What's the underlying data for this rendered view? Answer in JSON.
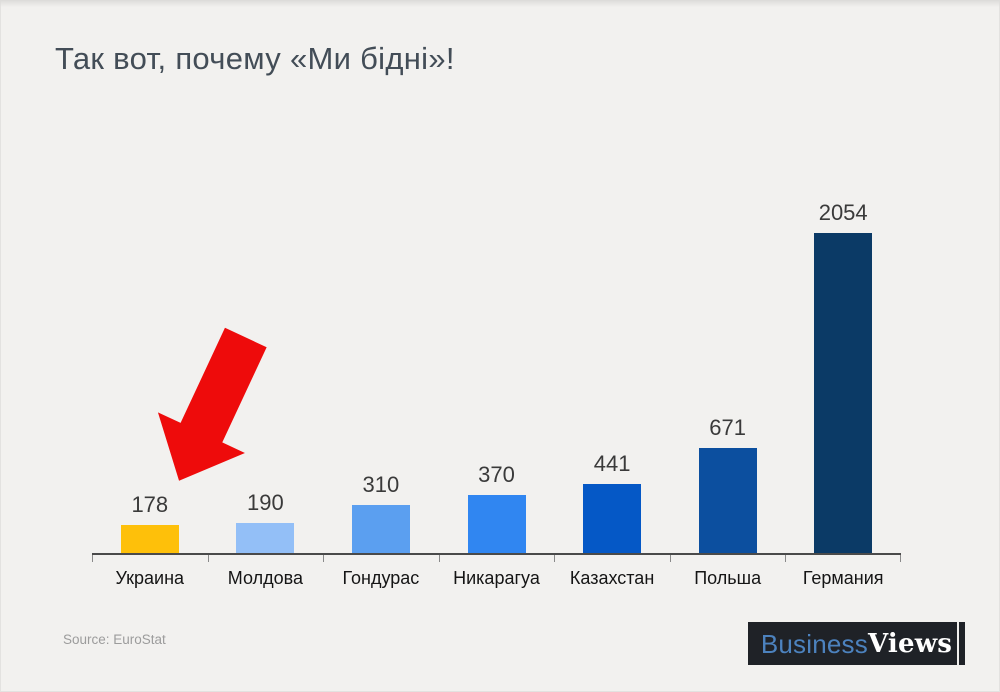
{
  "page": {
    "background": "#F2F1EF"
  },
  "title": "Так вот, почему «Ми бідні»!",
  "source": {
    "label": "Source: EuroStat"
  },
  "logo": {
    "part1": "Business",
    "part2": "Views",
    "bg": "#1F2227",
    "part1_color": "#4C82BE",
    "part2_color": "#FFFFFF",
    "accent_line_color": "#F0EFED"
  },
  "annotation": {
    "arrow_color": "#EE0B0B"
  },
  "chart_data": {
    "type": "bar",
    "title": "Так вот, почему «Ми бідні»!",
    "categories": [
      "Украина",
      "Молдова",
      "Гондурас",
      "Никарагуа",
      "Казахстан",
      "Польша",
      "Германия"
    ],
    "values": [
      178,
      190,
      310,
      370,
      441,
      671,
      2054
    ],
    "bar_colors": [
      "#FEC00A",
      "#93BFF7",
      "#5B9FF0",
      "#3086F1",
      "#0558C6",
      "#0C4F9F",
      "#0B3A66"
    ],
    "xlabel": "",
    "ylabel": "",
    "ylim": [
      0,
      2054
    ],
    "grid": false,
    "legend": false,
    "value_labels": true,
    "axis_color": "#4A4A4A",
    "tick_color": "#8A8A8A"
  }
}
